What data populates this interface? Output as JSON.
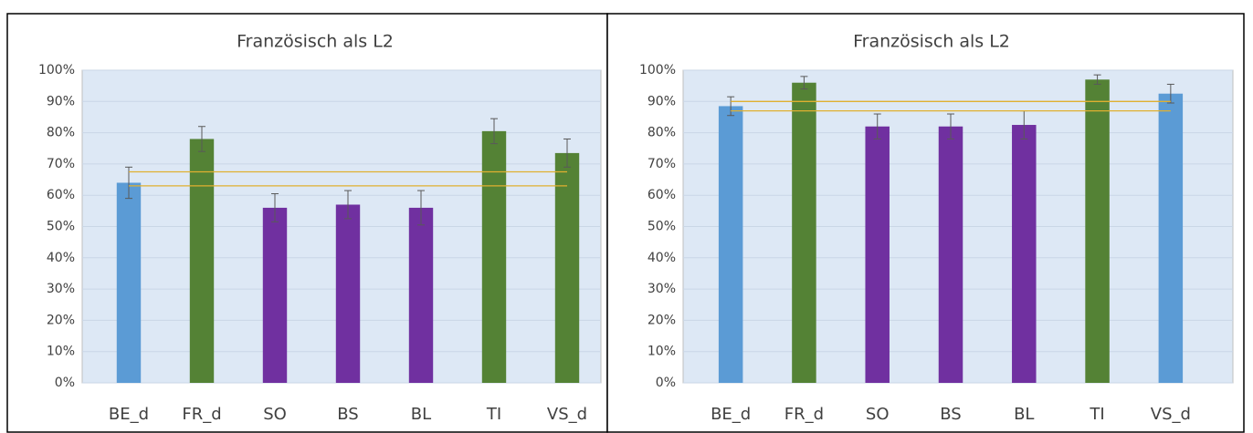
{
  "chart_data": [
    {
      "type": "bar",
      "title": "Französisch als L2",
      "categories": [
        "BE_d",
        "FR_d",
        "SO",
        "BS",
        "BL",
        "TI",
        "VS_d"
      ],
      "values": [
        64,
        78,
        56,
        57,
        56,
        80.5,
        73.5
      ],
      "errors": [
        5,
        4,
        4.5,
        4.5,
        5.5,
        4,
        4.5
      ],
      "colors": [
        "#5b9bd5",
        "#548235",
        "#7030a0",
        "#7030a0",
        "#7030a0",
        "#548235",
        "#548235"
      ],
      "reference_lines": [
        67.5,
        63
      ],
      "reference_color": "#e0b030",
      "ylim": [
        0,
        100
      ],
      "yticks": [
        {
          "value": 0,
          "label": "0%"
        },
        {
          "value": 10,
          "label": "10%"
        },
        {
          "value": 20,
          "label": "20%"
        },
        {
          "value": 30,
          "label": "30%"
        },
        {
          "value": 40,
          "label": "40%"
        },
        {
          "value": 50,
          "label": "50%"
        },
        {
          "value": 60,
          "label": "60%"
        },
        {
          "value": 70,
          "label": "70%"
        },
        {
          "value": 80,
          "label": "80%"
        },
        {
          "value": 90,
          "label": "90%"
        },
        {
          "value": 100,
          "label": "100%"
        }
      ],
      "grid": true
    },
    {
      "type": "bar",
      "title": "Französisch als L2",
      "categories": [
        "BE_d",
        "FR_d",
        "SO",
        "BS",
        "BL",
        "TI",
        "VS_d"
      ],
      "values": [
        88.5,
        96,
        82,
        82,
        82.5,
        97,
        92.5
      ],
      "errors": [
        3,
        2,
        4,
        4,
        4.5,
        1.5,
        3
      ],
      "colors": [
        "#5b9bd5",
        "#548235",
        "#7030a0",
        "#7030a0",
        "#7030a0",
        "#548235",
        "#5b9bd5"
      ],
      "reference_lines": [
        90,
        87
      ],
      "reference_color": "#e0b030",
      "ylim": [
        0,
        100
      ],
      "yticks": [
        {
          "value": 0,
          "label": "0%"
        },
        {
          "value": 10,
          "label": "10%"
        },
        {
          "value": 20,
          "label": "20%"
        },
        {
          "value": 30,
          "label": "30%"
        },
        {
          "value": 40,
          "label": "40%"
        },
        {
          "value": 50,
          "label": "50%"
        },
        {
          "value": 60,
          "label": "60%"
        },
        {
          "value": 70,
          "label": "70%"
        },
        {
          "value": 80,
          "label": "80%"
        },
        {
          "value": 90,
          "label": "90%"
        },
        {
          "value": 100,
          "label": "100%"
        }
      ],
      "grid": true
    }
  ]
}
